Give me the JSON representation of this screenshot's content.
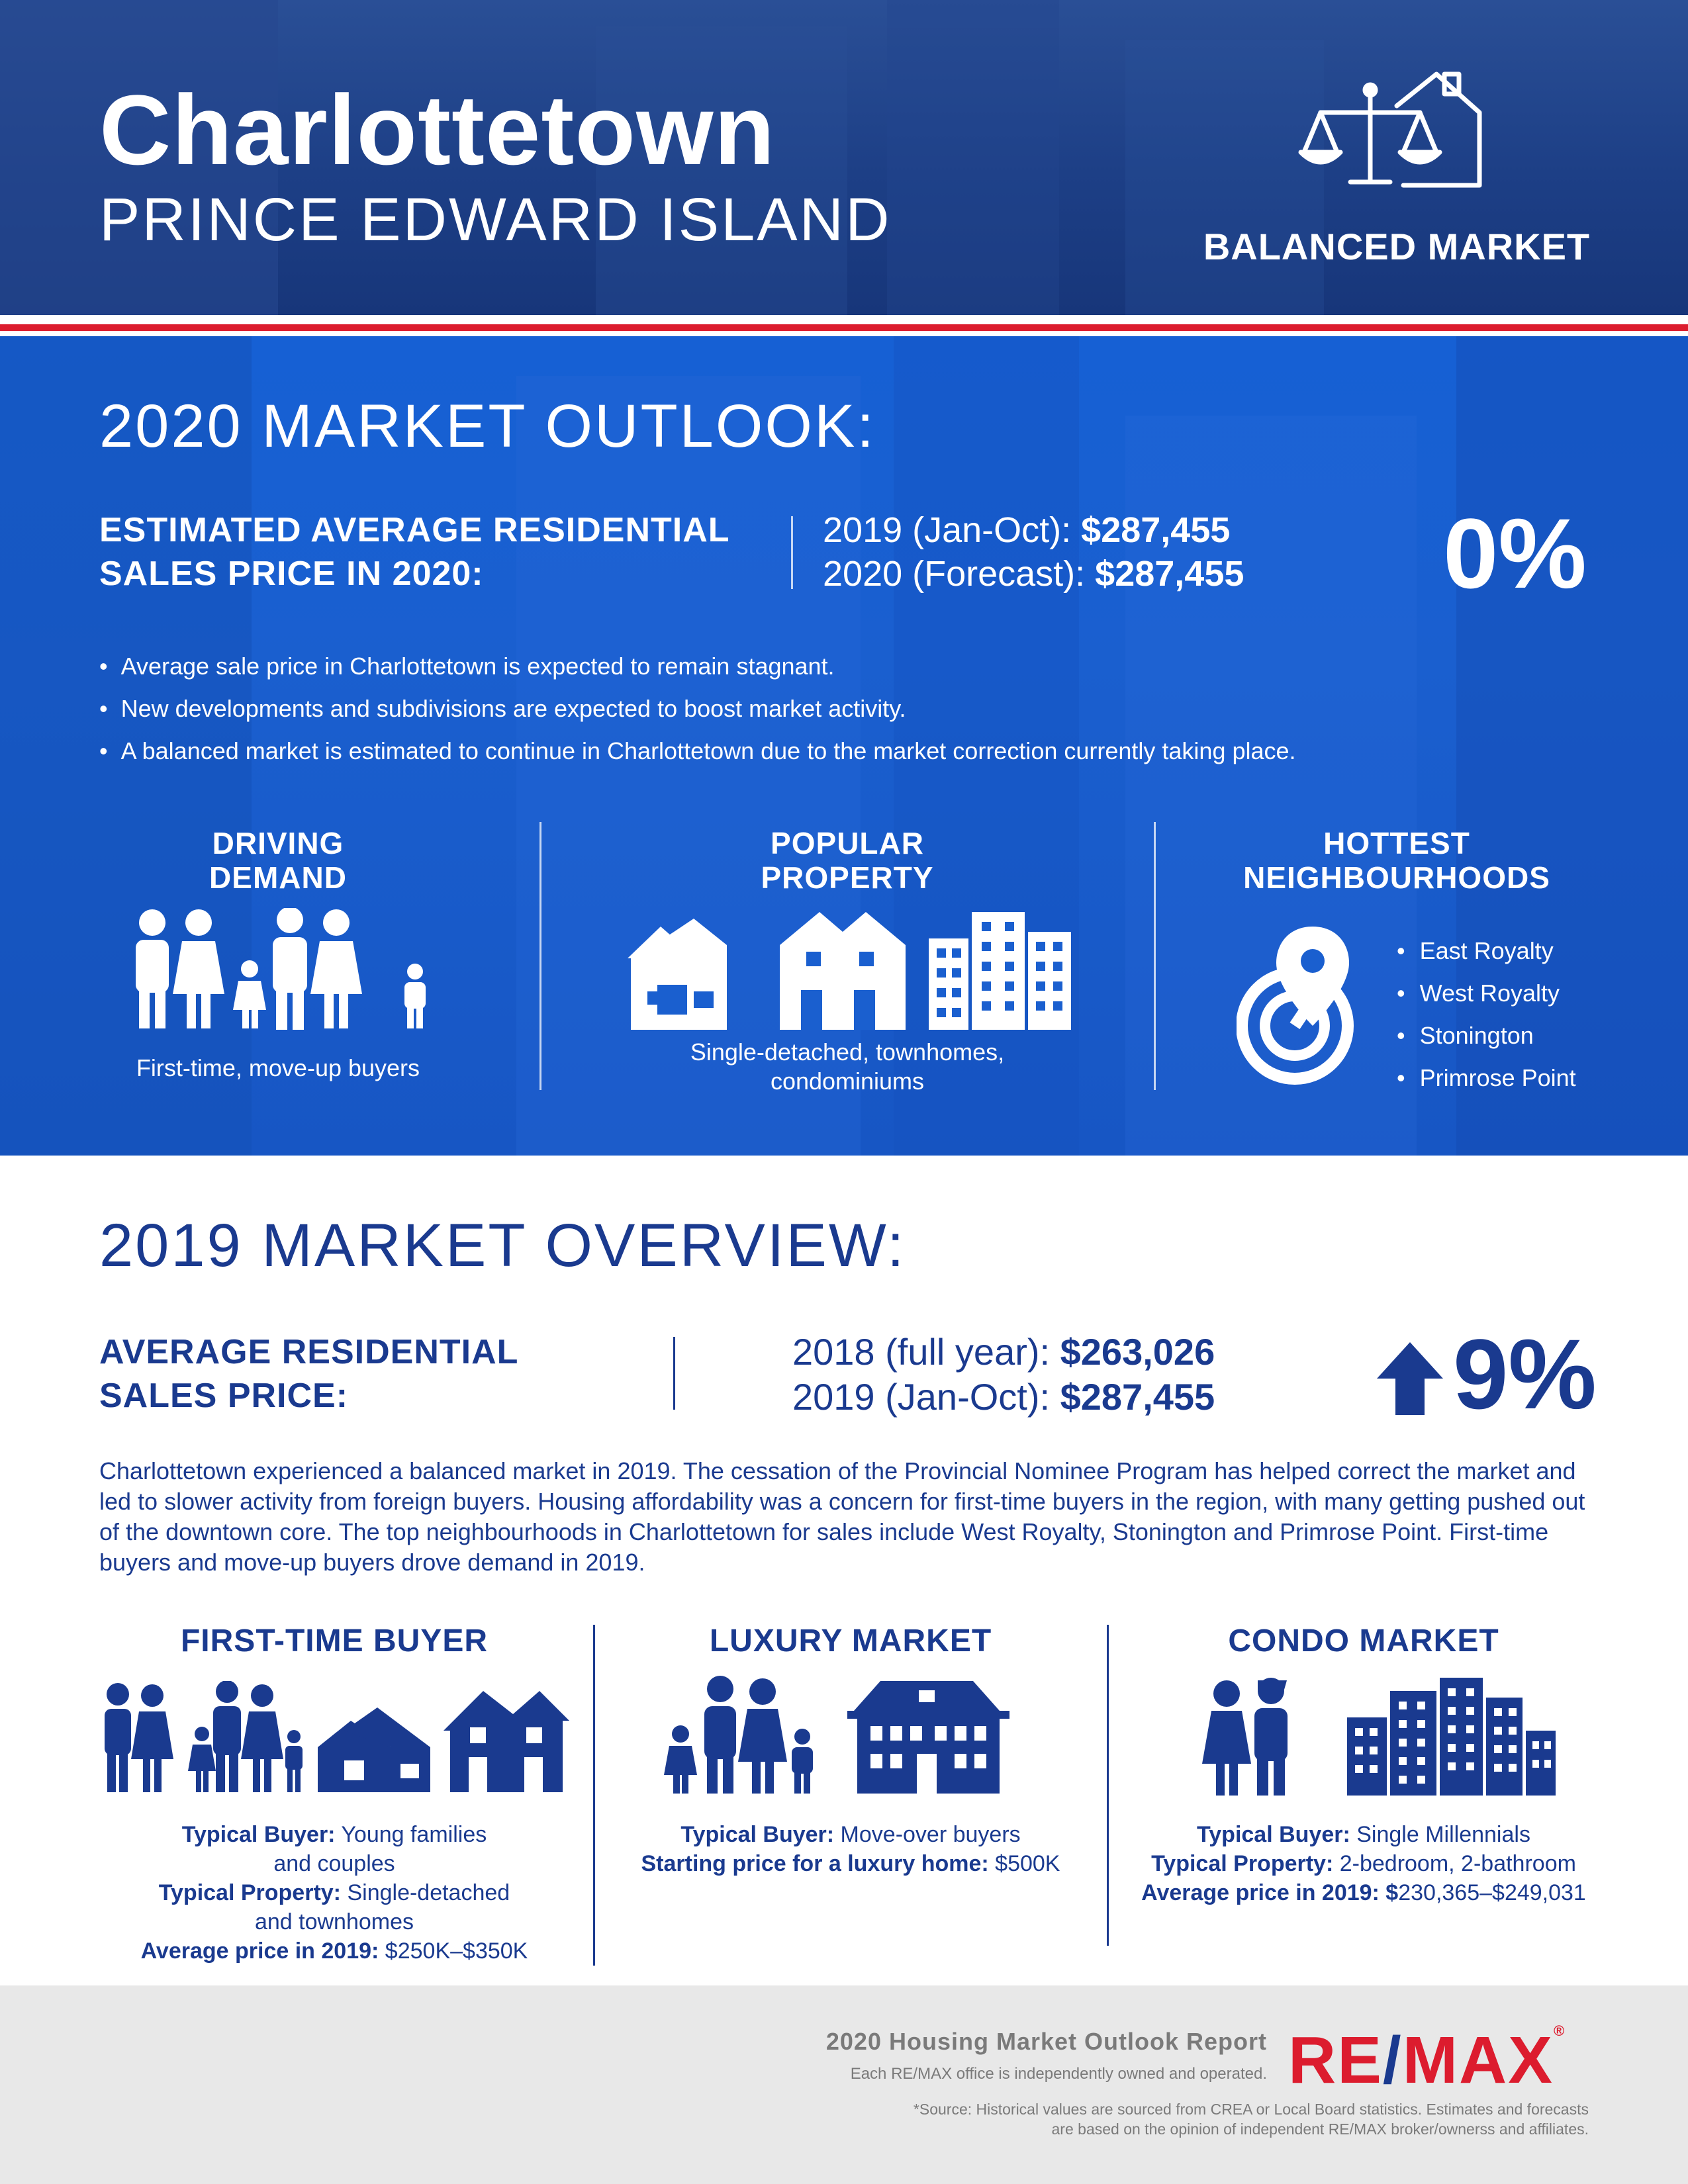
{
  "header": {
    "city": "Charlottetown",
    "province": "PRINCE EDWARD ISLAND",
    "market_type": "BALANCED MARKET"
  },
  "outlook": {
    "title": "2020 MARKET OUTLOOK:",
    "label_line1": "ESTIMATED AVERAGE RESIDENTIAL",
    "label_line2": "SALES PRICE IN 2020:",
    "row1_label": "2019 (Jan-Oct): ",
    "row1_value": "$287,455",
    "row2_label": "2020 (Forecast): ",
    "row2_value": "$287,455",
    "change": "0%",
    "bullets": [
      "Average sale price in Charlottetown is expected to remain stagnant.",
      "New developments and subdivisions are expected to boost market activity.",
      "A balanced market is estimated to continue in Charlottetown due to the market correction currently taking place."
    ],
    "driving": {
      "head1": "DRIVING",
      "head2": "DEMAND",
      "caption": "First-time, move-up buyers"
    },
    "popular": {
      "head1": "POPULAR",
      "head2": "PROPERTY",
      "caption1": "Single-detached, townhomes,",
      "caption2": "condominiums"
    },
    "hottest": {
      "head1": "HOTTEST",
      "head2": "NEIGHBOURHOODS",
      "items": [
        "East Royalty",
        "West Royalty",
        "Stonington",
        "Primrose Point"
      ]
    }
  },
  "overview": {
    "title": "2019 MARKET OVERVIEW:",
    "label_line1": "AVERAGE RESIDENTIAL",
    "label_line2": "SALES PRICE:",
    "row1_label": "2018 (full year): ",
    "row1_value": "$263,026",
    "row2_label": "2019 (Jan-Oct): ",
    "row2_value": "$287,455",
    "change": "9%",
    "paragraph": "Charlottetown experienced a balanced market in 2019. The cessation of the Provincial Nominee Program has helped correct the market and led to slower activity from foreign buyers. Housing affordability was a concern for first-time buyers in the region, with many getting pushed out of the downtown core. The top neighbourhoods in Charlottetown for sales include West Royalty, Stonington and Primrose Point. First-time buyers and move-up buyers drove demand in 2019.",
    "first_time": {
      "head": "FIRST-TIME BUYER",
      "buyer_label": "Typical Buyer:",
      "buyer_value1": " Young families",
      "buyer_value2": "and couples",
      "property_label": "Typical Property:",
      "property_value1": " Single-detached",
      "property_value2": "and townhomes",
      "price_label": "Average price in 2019:",
      "price_value": " $250K–$350K"
    },
    "luxury": {
      "head": "LUXURY MARKET",
      "buyer_label": "Typical Buyer:",
      "buyer_value": " Move-over buyers",
      "start_label": "Starting price for a luxury home:",
      "start_value": " $500K"
    },
    "condo": {
      "head": "CONDO MARKET",
      "buyer_label": "Typical Buyer:",
      "buyer_value": " Single Millennials",
      "property_label": "Typical Property:",
      "property_value": " 2-bedroom, 2-bathroom",
      "price_label": "Average price in 2019: $",
      "price_value": "230,365–$249,031"
    }
  },
  "footer": {
    "title": "2020 Housing Market Outlook Report",
    "sub": "Each RE/MAX office is independently owned and operated.",
    "source1": "*Source: Historical values are sourced from CREA or Local Board statistics. Estimates and forecasts",
    "source2": "are based on the opinion of independent RE/MAX broker/ownerss and affiliates.",
    "logo_re": "RE",
    "logo_slash": "/",
    "logo_max": "MAX",
    "logo_reg": "®"
  },
  "colors": {
    "navy": "#1a3a8f",
    "blue": "#1a5fcf",
    "red": "#dc1c2e",
    "footer_bg": "#e8e8e8"
  }
}
